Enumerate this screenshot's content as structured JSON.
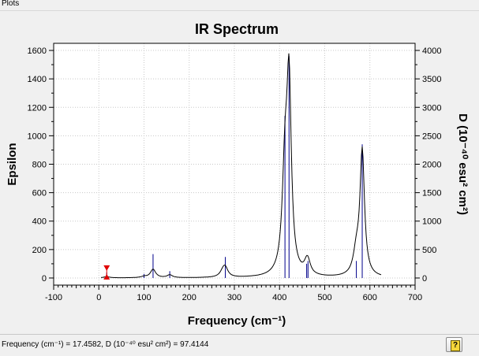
{
  "window": {
    "title": "Plots"
  },
  "status": {
    "readout": "Frequency (cm⁻¹) = 17.4582, D (10⁻⁴⁰ esu² cm²) = 97.4144"
  },
  "chart_data": {
    "type": "line",
    "title": "IR Spectrum",
    "xlabel": "Frequency (cm⁻¹)",
    "ylabel": "Epsilon",
    "y2label": "D (10⁻⁴⁰ esu² cm²)",
    "xlim": [
      -100,
      700
    ],
    "ylim": [
      -50,
      1650
    ],
    "y2lim": [
      -125,
      4125
    ],
    "x_ticks": [
      -100,
      0,
      100,
      200,
      300,
      400,
      500,
      600,
      700
    ],
    "y_ticks": [
      0,
      200,
      400,
      600,
      800,
      1000,
      1200,
      1400,
      1600
    ],
    "y2_ticks": [
      0,
      500,
      1000,
      1500,
      2000,
      2500,
      3000,
      3500,
      4000
    ],
    "grid": true,
    "colors": {
      "spectrum": "#000000",
      "sticks": "#00008b",
      "marker": "#e00000",
      "plot_bg": "#ffffff"
    },
    "spectrum": {
      "baseline": 0,
      "peaks": [
        {
          "x": 17.5,
          "epsilon": 8,
          "width": 8
        },
        {
          "x": 100,
          "epsilon": 8,
          "width": 7
        },
        {
          "x": 120,
          "epsilon": 60,
          "width": 7
        },
        {
          "x": 157,
          "epsilon": 20,
          "width": 7
        },
        {
          "x": 275,
          "epsilon": 40,
          "width": 8
        },
        {
          "x": 280,
          "epsilon": 55,
          "width": 7
        },
        {
          "x": 412,
          "epsilon": 700,
          "width": 7
        },
        {
          "x": 421,
          "epsilon": 1300,
          "width": 6
        },
        {
          "x": 460,
          "epsilon": 55,
          "width": 7
        },
        {
          "x": 463,
          "epsilon": 65,
          "width": 7
        },
        {
          "x": 570,
          "epsilon": 150,
          "width": 8
        },
        {
          "x": 583,
          "epsilon": 880,
          "width": 6
        }
      ]
    },
    "sticks": [
      {
        "x": 17.5,
        "d": 97
      },
      {
        "x": 100,
        "d": 70
      },
      {
        "x": 120,
        "d": 420
      },
      {
        "x": 157,
        "d": 120
      },
      {
        "x": 280,
        "d": 370
      },
      {
        "x": 412,
        "d": 2850
      },
      {
        "x": 421,
        "d": 3900
      },
      {
        "x": 460,
        "d": 250
      },
      {
        "x": 463,
        "d": 300
      },
      {
        "x": 570,
        "d": 300
      },
      {
        "x": 583,
        "d": 2350
      }
    ],
    "marker": {
      "x": 17.4582,
      "d": 97.4144
    }
  }
}
